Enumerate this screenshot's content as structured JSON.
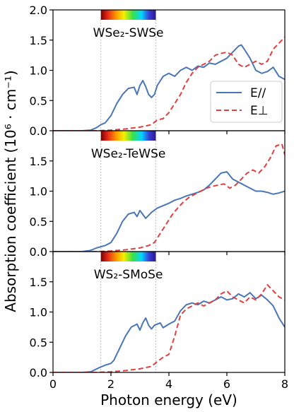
{
  "chart_data": {
    "type": "line",
    "xlabel": "Photon energy (eV)",
    "ylabel": "Absorption coefficient (10⁶ · cm⁻¹)",
    "xlim": [
      0,
      8
    ],
    "xticks": [
      0,
      2,
      4,
      6,
      8
    ],
    "grid": false,
    "legend": {
      "placement": "right, top panel",
      "entries": [
        {
          "label": "E//",
          "color": "#4a76b8",
          "style": "solid"
        },
        {
          "label": "E⊥",
          "color": "#e0403f",
          "style": "dashed"
        }
      ]
    },
    "visible_spectrum_band": {
      "x_range": [
        1.65,
        3.55
      ],
      "reference_lines": [
        1.65,
        3.55
      ]
    },
    "panels": [
      {
        "label": "WSe₂-SWSe",
        "ylim": [
          0,
          2.0
        ],
        "yticks": [
          "0.0",
          "0.5",
          "1.0",
          "1.5",
          "2.0"
        ],
        "series": [
          {
            "name": "E//",
            "color": "#4a76b8",
            "style": "solid",
            "points": [
              [
                0,
                0
              ],
              [
                1.0,
                0
              ],
              [
                1.3,
                0.01
              ],
              [
                1.5,
                0.05
              ],
              [
                1.65,
                0.1
              ],
              [
                1.8,
                0.13
              ],
              [
                2.0,
                0.25
              ],
              [
                2.2,
                0.45
              ],
              [
                2.4,
                0.6
              ],
              [
                2.6,
                0.7
              ],
              [
                2.8,
                0.72
              ],
              [
                2.9,
                0.6
              ],
              [
                3.0,
                0.75
              ],
              [
                3.1,
                0.83
              ],
              [
                3.2,
                0.73
              ],
              [
                3.3,
                0.6
              ],
              [
                3.4,
                0.55
              ],
              [
                3.5,
                0.6
              ],
              [
                3.6,
                0.75
              ],
              [
                3.8,
                0.9
              ],
              [
                4.0,
                0.95
              ],
              [
                4.2,
                0.9
              ],
              [
                4.4,
                1.0
              ],
              [
                4.6,
                1.05
              ],
              [
                4.8,
                1.0
              ],
              [
                5.0,
                1.07
              ],
              [
                5.2,
                1.05
              ],
              [
                5.4,
                1.12
              ],
              [
                5.6,
                1.1
              ],
              [
                5.8,
                1.15
              ],
              [
                6.0,
                1.2
              ],
              [
                6.2,
                1.3
              ],
              [
                6.4,
                1.4
              ],
              [
                6.5,
                1.42
              ],
              [
                6.6,
                1.35
              ],
              [
                6.8,
                1.2
              ],
              [
                7.0,
                1.0
              ],
              [
                7.2,
                0.95
              ],
              [
                7.4,
                0.98
              ],
              [
                7.6,
                1.05
              ],
              [
                7.8,
                0.9
              ],
              [
                8.0,
                0.85
              ]
            ]
          },
          {
            "name": "E⊥",
            "color": "#e0403f",
            "style": "dashed",
            "points": [
              [
                0,
                0
              ],
              [
                1.5,
                0
              ],
              [
                2.0,
                0.01
              ],
              [
                2.5,
                0.03
              ],
              [
                3.0,
                0.06
              ],
              [
                3.4,
                0.1
              ],
              [
                3.6,
                0.18
              ],
              [
                3.8,
                0.2
              ],
              [
                4.0,
                0.3
              ],
              [
                4.2,
                0.45
              ],
              [
                4.4,
                0.6
              ],
              [
                4.6,
                0.8
              ],
              [
                4.8,
                0.95
              ],
              [
                5.0,
                1.05
              ],
              [
                5.2,
                1.1
              ],
              [
                5.4,
                1.15
              ],
              [
                5.6,
                1.25
              ],
              [
                5.8,
                1.28
              ],
              [
                6.0,
                1.3
              ],
              [
                6.2,
                1.25
              ],
              [
                6.4,
                1.1
              ],
              [
                6.6,
                1.05
              ],
              [
                6.8,
                1.1
              ],
              [
                7.0,
                1.15
              ],
              [
                7.2,
                1.1
              ],
              [
                7.4,
                1.15
              ],
              [
                7.6,
                1.35
              ],
              [
                7.8,
                1.45
              ],
              [
                8.0,
                1.55
              ]
            ]
          }
        ]
      },
      {
        "label": "WSe₂-TeWSe",
        "ylim": [
          0,
          2.0
        ],
        "yticks": [
          "0.0",
          "0.5",
          "1.0",
          "1.5"
        ],
        "series": [
          {
            "name": "E//",
            "color": "#4a76b8",
            "style": "solid",
            "points": [
              [
                0,
                0
              ],
              [
                1.0,
                0
              ],
              [
                1.3,
                0.02
              ],
              [
                1.5,
                0.06
              ],
              [
                1.8,
                0.1
              ],
              [
                2.0,
                0.15
              ],
              [
                2.2,
                0.3
              ],
              [
                2.4,
                0.5
              ],
              [
                2.6,
                0.62
              ],
              [
                2.8,
                0.65
              ],
              [
                2.9,
                0.58
              ],
              [
                3.0,
                0.68
              ],
              [
                3.2,
                0.55
              ],
              [
                3.4,
                0.65
              ],
              [
                3.6,
                0.72
              ],
              [
                3.8,
                0.76
              ],
              [
                4.0,
                0.8
              ],
              [
                4.2,
                0.85
              ],
              [
                4.4,
                0.88
              ],
              [
                4.6,
                0.92
              ],
              [
                4.8,
                0.95
              ],
              [
                5.0,
                0.98
              ],
              [
                5.2,
                1.02
              ],
              [
                5.4,
                1.1
              ],
              [
                5.6,
                1.2
              ],
              [
                5.8,
                1.3
              ],
              [
                6.0,
                1.32
              ],
              [
                6.2,
                1.2
              ],
              [
                6.4,
                1.15
              ],
              [
                6.6,
                1.1
              ],
              [
                6.8,
                1.05
              ],
              [
                7.0,
                1.0
              ],
              [
                7.2,
                1.0
              ],
              [
                7.4,
                0.98
              ],
              [
                7.6,
                0.95
              ],
              [
                7.8,
                0.97
              ],
              [
                8.0,
                1.0
              ]
            ]
          },
          {
            "name": "E⊥",
            "color": "#e0403f",
            "style": "dashed",
            "points": [
              [
                0,
                0
              ],
              [
                1.5,
                0
              ],
              [
                2.0,
                0.01
              ],
              [
                2.5,
                0.03
              ],
              [
                3.0,
                0.06
              ],
              [
                3.3,
                0.1
              ],
              [
                3.5,
                0.15
              ],
              [
                3.7,
                0.3
              ],
              [
                3.9,
                0.45
              ],
              [
                4.1,
                0.6
              ],
              [
                4.3,
                0.72
              ],
              [
                4.5,
                0.82
              ],
              [
                4.7,
                0.9
              ],
              [
                4.9,
                0.95
              ],
              [
                5.1,
                1.0
              ],
              [
                5.3,
                1.05
              ],
              [
                5.5,
                1.08
              ],
              [
                5.7,
                1.1
              ],
              [
                5.9,
                1.12
              ],
              [
                6.1,
                1.05
              ],
              [
                6.3,
                1.1
              ],
              [
                6.5,
                1.2
              ],
              [
                6.7,
                1.3
              ],
              [
                6.9,
                1.35
              ],
              [
                7.1,
                1.3
              ],
              [
                7.3,
                1.4
              ],
              [
                7.5,
                1.55
              ],
              [
                7.7,
                1.75
              ],
              [
                7.9,
                1.78
              ],
              [
                8.0,
                1.6
              ]
            ]
          }
        ]
      },
      {
        "label": "WS₂-SMoSe",
        "ylim": [
          0,
          2.0
        ],
        "yticks": [
          "0.0",
          "0.5",
          "1.0",
          "1.5"
        ],
        "series": [
          {
            "name": "E//",
            "color": "#4a76b8",
            "style": "solid",
            "points": [
              [
                0,
                0
              ],
              [
                1.0,
                0
              ],
              [
                1.3,
                0.01
              ],
              [
                1.6,
                0.08
              ],
              [
                1.8,
                0.12
              ],
              [
                2.0,
                0.15
              ],
              [
                2.1,
                0.2
              ],
              [
                2.3,
                0.4
              ],
              [
                2.5,
                0.6
              ],
              [
                2.7,
                0.75
              ],
              [
                2.9,
                0.8
              ],
              [
                3.0,
                0.7
              ],
              [
                3.1,
                0.82
              ],
              [
                3.2,
                0.9
              ],
              [
                3.3,
                0.78
              ],
              [
                3.4,
                0.72
              ],
              [
                3.5,
                0.78
              ],
              [
                3.7,
                0.82
              ],
              [
                3.8,
                0.74
              ],
              [
                4.0,
                0.8
              ],
              [
                4.2,
                0.85
              ],
              [
                4.4,
                1.02
              ],
              [
                4.6,
                1.12
              ],
              [
                4.8,
                1.15
              ],
              [
                5.0,
                1.12
              ],
              [
                5.2,
                1.18
              ],
              [
                5.4,
                1.15
              ],
              [
                5.6,
                1.2
              ],
              [
                5.8,
                1.25
              ],
              [
                6.0,
                1.2
              ],
              [
                6.2,
                1.22
              ],
              [
                6.4,
                1.3
              ],
              [
                6.6,
                1.25
              ],
              [
                6.8,
                1.32
              ],
              [
                7.0,
                1.22
              ],
              [
                7.2,
                1.28
              ],
              [
                7.4,
                1.2
              ],
              [
                7.6,
                1.1
              ],
              [
                7.8,
                0.9
              ],
              [
                8.0,
                0.75
              ]
            ]
          },
          {
            "name": "E⊥",
            "color": "#e0403f",
            "style": "dashed",
            "points": [
              [
                0,
                0
              ],
              [
                1.5,
                0
              ],
              [
                2.0,
                0.01
              ],
              [
                2.5,
                0.03
              ],
              [
                3.0,
                0.06
              ],
              [
                3.4,
                0.1
              ],
              [
                3.6,
                0.18
              ],
              [
                3.8,
                0.25
              ],
              [
                4.0,
                0.3
              ],
              [
                4.2,
                0.6
              ],
              [
                4.4,
                0.95
              ],
              [
                4.6,
                1.05
              ],
              [
                4.8,
                1.1
              ],
              [
                5.0,
                1.15
              ],
              [
                5.2,
                1.1
              ],
              [
                5.4,
                1.15
              ],
              [
                5.6,
                1.2
              ],
              [
                5.8,
                1.3
              ],
              [
                6.0,
                1.35
              ],
              [
                6.2,
                1.25
              ],
              [
                6.4,
                1.2
              ],
              [
                6.6,
                1.15
              ],
              [
                6.8,
                1.25
              ],
              [
                7.0,
                1.2
              ],
              [
                7.2,
                1.3
              ],
              [
                7.4,
                1.45
              ],
              [
                7.6,
                1.35
              ],
              [
                7.8,
                1.25
              ],
              [
                8.0,
                1.2
              ]
            ]
          }
        ]
      }
    ]
  }
}
